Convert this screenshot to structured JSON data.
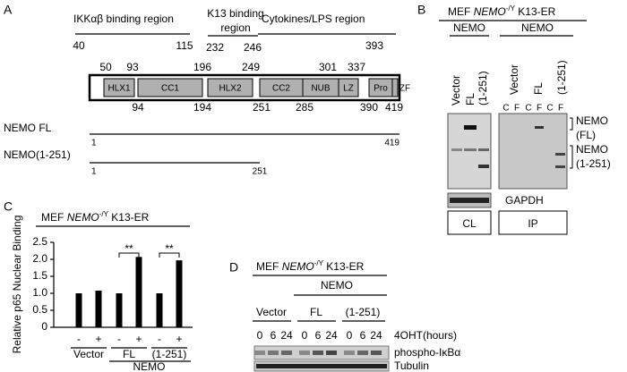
{
  "panel_a": {
    "label": "A",
    "regions": [
      {
        "lines": [
          "IKKαβ binding region"
        ],
        "start": 40,
        "end": 115
      },
      {
        "lines": [
          "K13 binding",
          "region"
        ],
        "start": 232,
        "end": 246
      },
      {
        "lines": [
          "Cytokines/LPS region"
        ],
        "end": 393
      }
    ],
    "domains": [
      "HLX1",
      "CC1",
      "HLX2",
      "CC2",
      "NUB",
      "LZ",
      "Pro",
      "ZF"
    ],
    "numbers_top": [
      50,
      93,
      196,
      249,
      301,
      337
    ],
    "numbers_bottom": [
      94,
      194,
      251,
      285,
      390,
      419
    ],
    "constructs": [
      {
        "name": "NEMO FL",
        "start": 1,
        "end": 419
      },
      {
        "name": "NEMO(1-251)",
        "start": 1,
        "end": 251
      }
    ]
  },
  "panel_b": {
    "label": "B",
    "title": {
      "prefix": "MEF",
      "gene": "NEMO",
      "genotype": "-/Y",
      "suffix": "K13-ER"
    },
    "groups": [
      "NEMO",
      "NEMO"
    ],
    "cl_lanes": [
      "Vector",
      "FL",
      "(1-251)"
    ],
    "ip_lanes": [
      "Vector",
      "FL",
      "(1-251)"
    ],
    "fractions": [
      "C",
      "F",
      "C",
      "F",
      "C",
      "F"
    ],
    "band_labels": [
      [
        "NEMO",
        "(FL)"
      ],
      [
        "NEMO",
        "(1-251)"
      ]
    ],
    "loading": "GAPDH",
    "sections": [
      "CL",
      "IP"
    ]
  },
  "chart_data": {
    "type": "bar",
    "label": "C",
    "title": {
      "prefix": "MEF",
      "gene": "NEMO",
      "genotype": "-/Y",
      "suffix": "K13-ER"
    },
    "y_label": "Relative p65 Nuclear Binding",
    "categories": [
      "-",
      "+",
      "-",
      "+",
      "-",
      "+"
    ],
    "values": [
      1.0,
      1.08,
      1.0,
      2.07,
      1.0,
      1.97
    ],
    "color": "#000000",
    "ylim": [
      0,
      2.5
    ],
    "yticks": [
      0,
      0.5,
      {
        "value": 1,
        "label": "1.0"
      },
      1.5,
      {
        "value": 2,
        "label": "2.0"
      },
      2.5
    ],
    "groups": [
      "Vector",
      "FL",
      "(1-251)"
    ],
    "supergroup": "NEMO",
    "annotations": [
      "**",
      "**"
    ]
  },
  "panel_d": {
    "label": "D",
    "title": {
      "prefix": "MEF",
      "gene": "NEMO",
      "genotype": "-/Y",
      "suffix": "K13-ER"
    },
    "group": "NEMO",
    "lanes": [
      "Vector",
      "FL",
      "(1-251)"
    ],
    "times": [
      0,
      6,
      24
    ],
    "time_label": "4OHT(hours)",
    "rows": [
      "phospho-IκBα",
      "Tubulin"
    ]
  }
}
